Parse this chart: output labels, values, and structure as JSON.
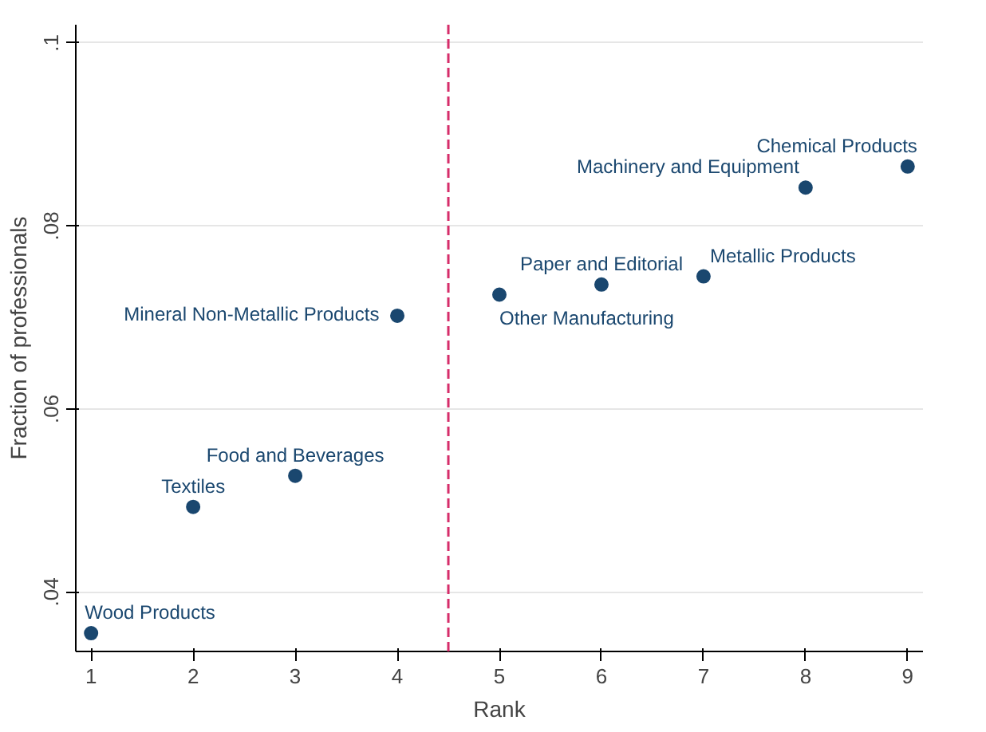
{
  "chart_data": {
    "type": "scatter",
    "xlabel": "Rank",
    "ylabel": "Fraction of professionals",
    "x": [
      1,
      2,
      3,
      4,
      5,
      6,
      7,
      8,
      9
    ],
    "series": [
      {
        "color": "#1a476f",
        "values": [
          0.0355,
          0.0493,
          0.0527,
          0.0702,
          0.0725,
          0.0736,
          0.0745,
          0.0842,
          0.0865
        ]
      }
    ],
    "marker": "circle",
    "xlim": [
      0.85,
      9.15
    ],
    "ylim": [
      0.0335,
      0.102
    ],
    "xticks": [
      1,
      2,
      3,
      4,
      5,
      6,
      7,
      8,
      9
    ],
    "yticks": [
      {
        "value": 0.04,
        "label": ".04"
      },
      {
        "value": 0.06,
        "label": ".06"
      },
      {
        "value": 0.08,
        "label": ".08"
      },
      {
        "value": 0.1,
        "label": ".1"
      }
    ],
    "grid": "y",
    "ref_lines": [
      {
        "axis": "x",
        "value": 4.5,
        "color": "#d62d6a",
        "line_style": "dashed"
      }
    ],
    "annotations": [
      {
        "text": "Wood Products",
        "x": 1,
        "y": 0.0355
      },
      {
        "text": "Textiles",
        "x": 2,
        "y": 0.0493
      },
      {
        "text": "Food and Beverages",
        "x": 3,
        "y": 0.0527
      },
      {
        "text": "Mineral  Non-Metallic Products",
        "x": 4,
        "y": 0.0702
      },
      {
        "text": "Other Manufacturing",
        "x": 5,
        "y": 0.0725
      },
      {
        "text": "Paper and Editorial",
        "x": 6,
        "y": 0.0736
      },
      {
        "text": "Metallic Products",
        "x": 7,
        "y": 0.0745
      },
      {
        "text": "Machinery and Equipment",
        "x": 8,
        "y": 0.0842
      },
      {
        "text": "Chemical Products",
        "x": 9,
        "y": 0.0865
      }
    ]
  }
}
